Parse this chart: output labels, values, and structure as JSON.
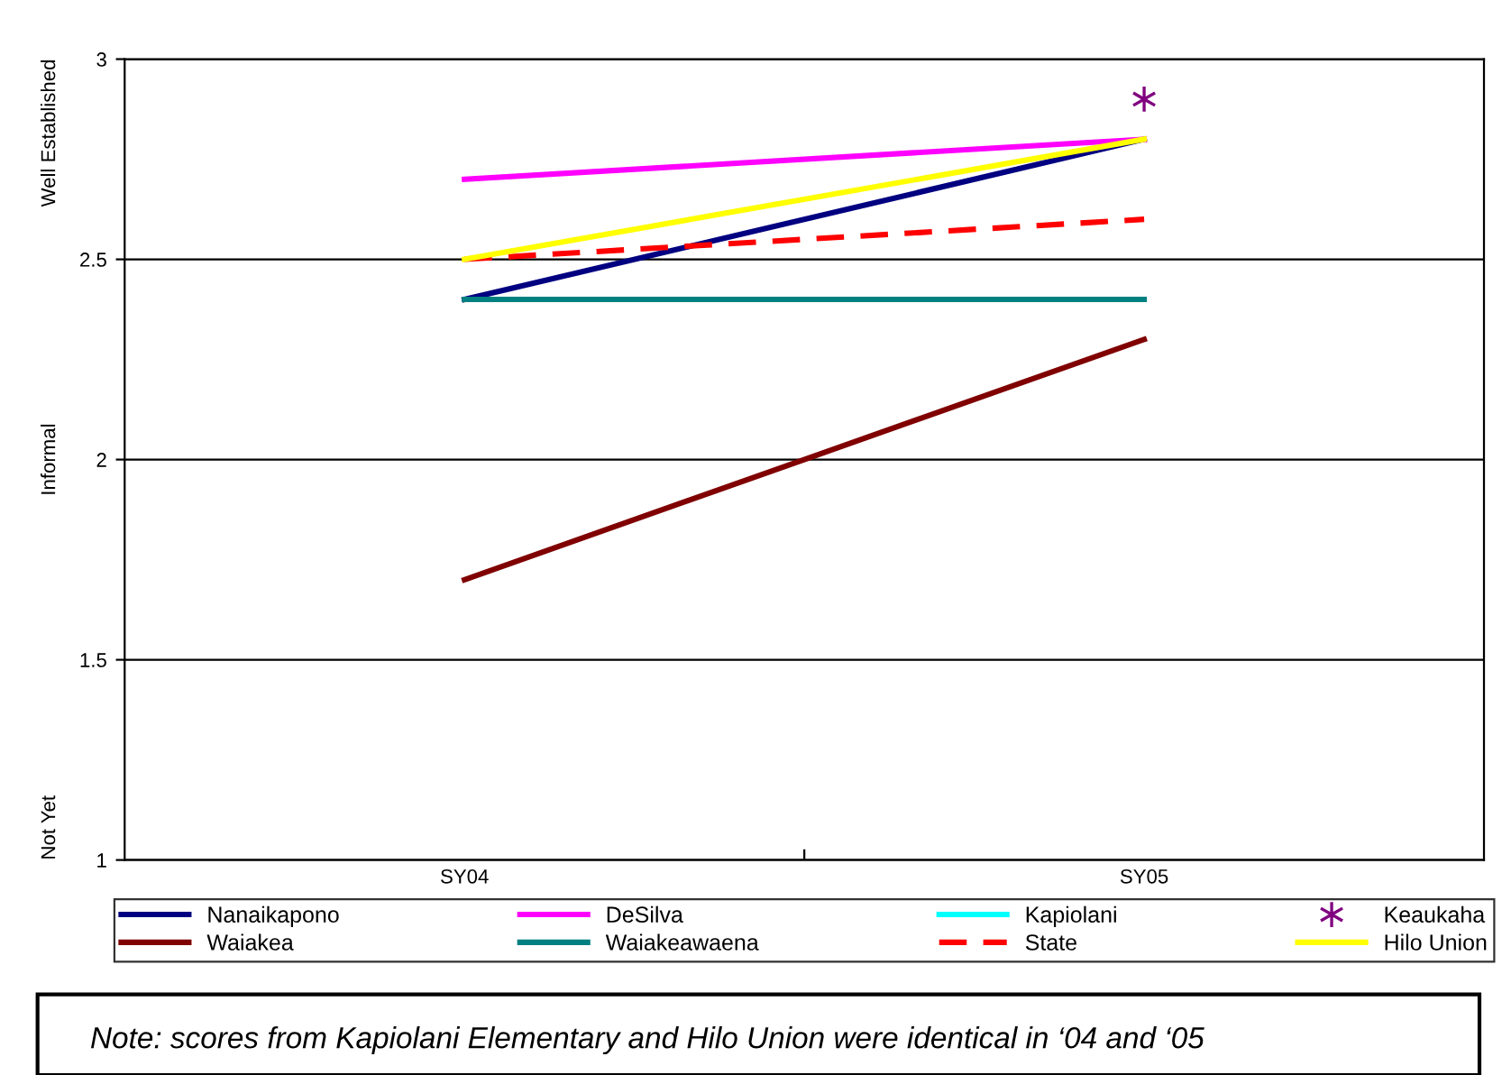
{
  "chart_data": {
    "type": "line",
    "categories": [
      "SY04",
      "SY05"
    ],
    "series": [
      {
        "name": "Nanaikapono",
        "color": "#000080",
        "values": [
          2.4,
          2.8
        ]
      },
      {
        "name": "DeSilva",
        "color": "#ff00ff",
        "values": [
          2.7,
          2.8
        ]
      },
      {
        "name": "Kapiolani",
        "color": "#00ffff",
        "values": [
          null,
          null
        ]
      },
      {
        "name": "Keaukaha",
        "color": "#800080",
        "type": "scatter",
        "marker": "cross",
        "values": [
          null,
          2.9
        ]
      },
      {
        "name": "Waiakea",
        "color": "#800000",
        "values": [
          1.7,
          2.3
        ]
      },
      {
        "name": "Waiakeawaena",
        "color": "#008080",
        "values": [
          2.4,
          2.4
        ]
      },
      {
        "name": "State",
        "color": "#ff0000",
        "line_style": "dashed",
        "values": [
          2.5,
          2.6
        ]
      },
      {
        "name": "Hilo Union",
        "color": "#ffff00",
        "values": [
          2.5,
          2.8
        ]
      }
    ],
    "ylim": [
      1,
      3
    ],
    "yticks": [
      1,
      1.5,
      2,
      2.5,
      3
    ],
    "grid": "y",
    "legend": "bottom",
    "annotations": [
      "Not Yet",
      "Informal",
      "Well Established",
      "Note: scores from Kapiolani Elementary and Hilo Union were identical in ‘04 and ‘05"
    ]
  }
}
